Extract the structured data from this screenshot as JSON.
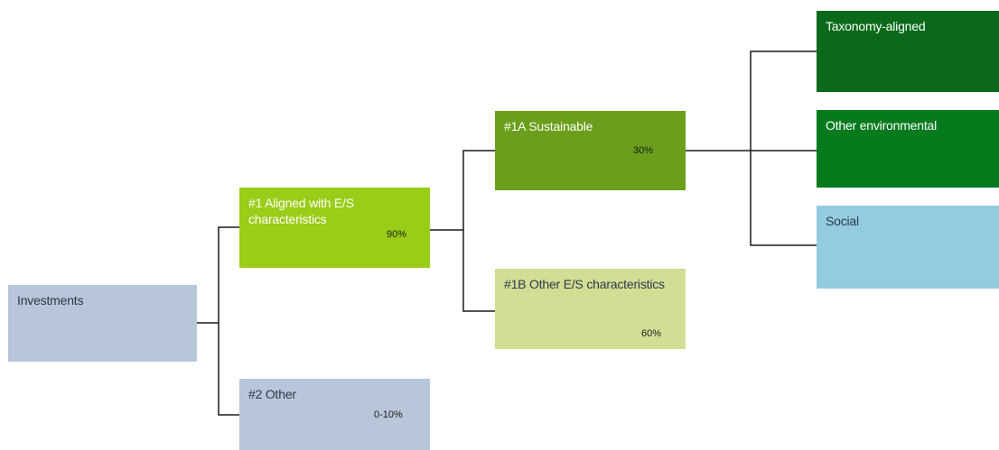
{
  "diagram": {
    "nodes": {
      "investments": {
        "label": "Investments"
      },
      "aligned": {
        "label": "#1 Aligned with E/S characteristics",
        "share": "90%"
      },
      "other": {
        "label": "#2 Other",
        "share": "0-10%"
      },
      "sustainable": {
        "label": "#1A Sustainable",
        "share": "30%"
      },
      "other_es": {
        "label": "#1B Other E/S characteristics",
        "share": "60%"
      },
      "taxonomy": {
        "label": "Taxonomy-aligned"
      },
      "other_env": {
        "label": "Other environmental"
      },
      "social": {
        "label": "Social"
      }
    },
    "edges": [
      [
        "investments",
        "aligned"
      ],
      [
        "investments",
        "other"
      ],
      [
        "aligned",
        "sustainable"
      ],
      [
        "aligned",
        "other_es"
      ],
      [
        "sustainable",
        "taxonomy"
      ],
      [
        "sustainable",
        "other_env"
      ],
      [
        "sustainable",
        "social"
      ]
    ],
    "colors": {
      "investments": "#b7c6d8",
      "aligned": "#9acd18",
      "other": "#b7c6d8",
      "sustainable": "#6b9e1a",
      "other_es": "#d3dd93",
      "taxonomy": "#0a6a1a",
      "other_env": "#087a1e",
      "social": "#93cce0",
      "connector": "#1a1a1a"
    }
  }
}
